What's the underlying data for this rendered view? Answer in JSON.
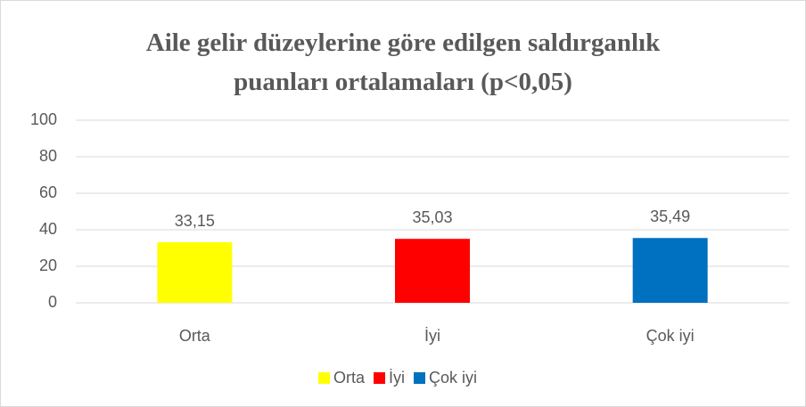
{
  "chart_data": {
    "type": "bar",
    "title": "Aile gelir düzeylerine göre edilgen saldırganlık puanları ortalamaları (p<0,05)",
    "categories": [
      "Orta",
      "İyi",
      "Çok iyi"
    ],
    "values": [
      33.15,
      35.03,
      35.49
    ],
    "value_labels": [
      "33,15",
      "35,03",
      "35,49"
    ],
    "colors": [
      "#ffff00",
      "#ff0000",
      "#0070c0"
    ],
    "ylim": [
      0,
      100
    ],
    "yticks": [
      0,
      20,
      40,
      60,
      80,
      100
    ],
    "grid": true,
    "legend": "bottom"
  }
}
